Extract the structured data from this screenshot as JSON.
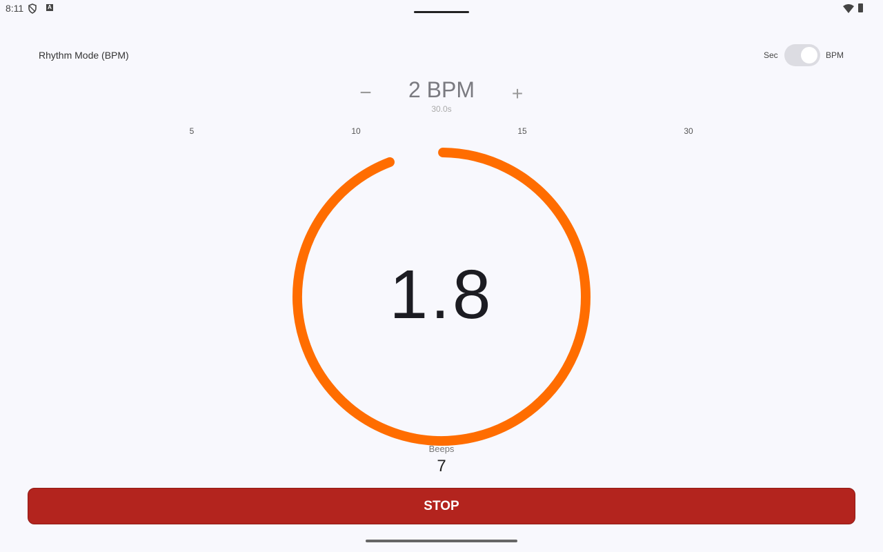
{
  "status_bar": {
    "time": "8:11",
    "icons": [
      "shield-icon",
      "a-icon",
      "wifi-icon",
      "battery-icon"
    ]
  },
  "header": {
    "mode_label": "Rhythm Mode (BPM)",
    "toggle": {
      "left_label": "Sec",
      "right_label": "BPM",
      "selected": "BPM"
    }
  },
  "tempo": {
    "value": "2 BPM",
    "seconds": "30.0s",
    "minus": "−",
    "plus": "+"
  },
  "presets": [
    "5",
    "10",
    "15",
    "30"
  ],
  "timer": {
    "count": "1.8",
    "progress": 0.94,
    "color": "#ff6d00"
  },
  "beeps": {
    "label": "Beeps",
    "value": "7"
  },
  "stop_button": {
    "label": "STOP",
    "color": "#b3241e"
  }
}
